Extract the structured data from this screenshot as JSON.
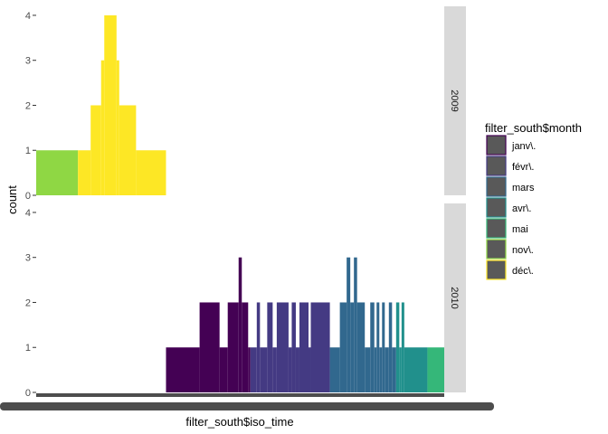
{
  "chart_data": {
    "type": "bar",
    "subtype": "histogram-faceted",
    "xlabel": "filter_south$iso_time",
    "ylabel": "count",
    "ylim": [
      0,
      4.2
    ],
    "y_ticks": [
      0,
      1,
      2,
      3,
      4
    ],
    "x_tick_labels_overplotted": true,
    "grid": false,
    "legend": {
      "title": "filter_south$month",
      "placement": "right",
      "entries": [
        {
          "label": "janv\\.",
          "color": "#440154"
        },
        {
          "label": "févr\\.",
          "color": "#443A83"
        },
        {
          "label": "mars",
          "color": "#31688E"
        },
        {
          "label": "avr\\.",
          "color": "#21908C"
        },
        {
          "label": "mai",
          "color": "#35B779"
        },
        {
          "label": "nov\\.",
          "color": "#8FD744"
        },
        {
          "label": "déc\\.",
          "color": "#FDE725"
        }
      ]
    },
    "panels": [
      {
        "strip": "2009",
        "bars": [
          {
            "x0": 0,
            "x1": 9.2,
            "y": 1,
            "month": "nov\\."
          },
          {
            "x0": 9.2,
            "x1": 12.0,
            "y": 1,
            "month": "déc\\."
          },
          {
            "x0": 12.0,
            "x1": 14.3,
            "y": 2,
            "month": "déc\\."
          },
          {
            "x0": 14.3,
            "x1": 15.0,
            "y": 3,
            "month": "déc\\."
          },
          {
            "x0": 15.0,
            "x1": 17.7,
            "y": 4,
            "month": "déc\\."
          },
          {
            "x0": 17.7,
            "x1": 18.3,
            "y": 3,
            "month": "déc\\."
          },
          {
            "x0": 18.3,
            "x1": 22.0,
            "y": 2,
            "month": "déc\\."
          },
          {
            "x0": 22.0,
            "x1": 28.6,
            "y": 1,
            "month": "déc\\."
          }
        ]
      },
      {
        "strip": "2010",
        "bars": [
          {
            "x0": 28.6,
            "x1": 36.0,
            "y": 1,
            "month": "janv\\."
          },
          {
            "x0": 36.0,
            "x1": 40.4,
            "y": 2,
            "month": "janv\\."
          },
          {
            "x0": 40.4,
            "x1": 42.2,
            "y": 1,
            "month": "janv\\."
          },
          {
            "x0": 42.2,
            "x1": 44.6,
            "y": 2,
            "month": "janv\\."
          },
          {
            "x0": 44.6,
            "x1": 45.3,
            "y": 3,
            "month": "janv\\."
          },
          {
            "x0": 45.3,
            "x1": 46.7,
            "y": 2,
            "month": "janv\\."
          },
          {
            "x0": 46.7,
            "x1": 47.2,
            "y": 1,
            "month": "janv\\."
          },
          {
            "x0": 47.2,
            "x1": 48.6,
            "y": 1,
            "month": "févr\\."
          },
          {
            "x0": 48.6,
            "x1": 49.3,
            "y": 2,
            "month": "févr\\."
          },
          {
            "x0": 49.3,
            "x1": 50.9,
            "y": 1,
            "month": "févr\\."
          },
          {
            "x0": 50.9,
            "x1": 52.1,
            "y": 2,
            "month": "févr\\."
          },
          {
            "x0": 52.1,
            "x1": 53.0,
            "y": 1,
            "month": "févr\\."
          },
          {
            "x0": 53.0,
            "x1": 55.6,
            "y": 2,
            "month": "févr\\."
          },
          {
            "x0": 55.6,
            "x1": 56.3,
            "y": 1,
            "month": "févr\\."
          },
          {
            "x0": 56.3,
            "x1": 57.2,
            "y": 2,
            "month": "févr\\."
          },
          {
            "x0": 57.2,
            "x1": 58.0,
            "y": 1,
            "month": "févr\\."
          },
          {
            "x0": 58.0,
            "x1": 60.0,
            "y": 2,
            "month": "févr\\."
          },
          {
            "x0": 60.0,
            "x1": 60.5,
            "y": 1,
            "month": "févr\\."
          },
          {
            "x0": 60.5,
            "x1": 64.7,
            "y": 2,
            "month": "févr\\."
          },
          {
            "x0": 64.7,
            "x1": 66.9,
            "y": 1,
            "month": "mars"
          },
          {
            "x0": 66.9,
            "x1": 68.4,
            "y": 2,
            "month": "mars"
          },
          {
            "x0": 68.4,
            "x1": 69.2,
            "y": 3,
            "month": "mars"
          },
          {
            "x0": 69.2,
            "x1": 70.0,
            "y": 2,
            "month": "mars"
          },
          {
            "x0": 70.0,
            "x1": 70.7,
            "y": 3,
            "month": "mars"
          },
          {
            "x0": 70.7,
            "x1": 72.4,
            "y": 2,
            "month": "mars"
          },
          {
            "x0": 72.4,
            "x1": 73.6,
            "y": 1,
            "month": "mars"
          },
          {
            "x0": 73.6,
            "x1": 74.5,
            "y": 2,
            "month": "mars"
          },
          {
            "x0": 74.5,
            "x1": 75.0,
            "y": 1,
            "month": "mars"
          },
          {
            "x0": 75.0,
            "x1": 75.6,
            "y": 2,
            "month": "mars"
          },
          {
            "x0": 75.6,
            "x1": 76.2,
            "y": 1,
            "month": "mars"
          },
          {
            "x0": 76.2,
            "x1": 76.8,
            "y": 2,
            "month": "mars"
          },
          {
            "x0": 76.8,
            "x1": 77.7,
            "y": 1,
            "month": "mars"
          },
          {
            "x0": 77.7,
            "x1": 78.4,
            "y": 2,
            "month": "mars"
          },
          {
            "x0": 78.4,
            "x1": 79.3,
            "y": 1,
            "month": "mars"
          },
          {
            "x0": 79.3,
            "x1": 80.0,
            "y": 2,
            "month": "avr\\."
          },
          {
            "x0": 80.0,
            "x1": 80.5,
            "y": 1,
            "month": "avr\\."
          },
          {
            "x0": 80.5,
            "x1": 81.1,
            "y": 2,
            "month": "avr\\."
          },
          {
            "x0": 81.1,
            "x1": 86.2,
            "y": 1,
            "month": "avr\\."
          },
          {
            "x0": 86.2,
            "x1": 89.9,
            "y": 1,
            "month": "mai"
          }
        ]
      }
    ]
  }
}
